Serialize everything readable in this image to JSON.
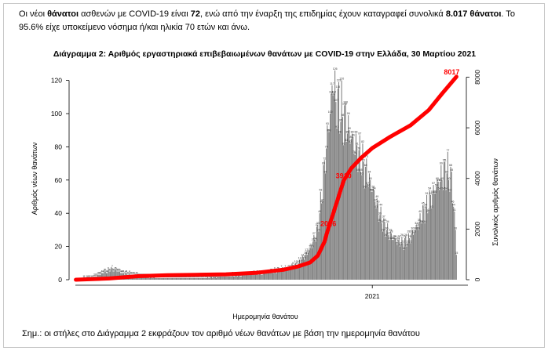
{
  "intro": {
    "s1": "Οι νέοι ",
    "b1": "θάνατοι",
    "s2": " ασθενών με COVID-19 είναι ",
    "b2": "72",
    "s3": ", ενώ από την έναρξη της επιδημίας έχουν καταγραφεί συνολικά ",
    "b3": "8.017 θάνατοι",
    "s4": ".  Το 95.6% είχε υποκείμενο νόσημα ή/και ηλικία 70 ετών και άνω."
  },
  "note": "Σημ.: οι στήλες στο Διάγραμμα 2 εκφράζουν τον αριθμό νέων θανάτων με βάση την ημερομηνία θανάτου",
  "chart_data": {
    "type": "bar",
    "title": "Διάγραμμα 2: Αριθμός εργαστηριακά επιβεβαιωμένων θανάτων με COVID-19 στην Ελλάδα, 30 Μαρτίου 2021",
    "xlabel": "Ημερομηνία θανάτου",
    "ylabel": "Αριθμός νέων θανάτων",
    "y2label": "Συνολικός αριθμός θανάτων",
    "x_tick_label": "2021",
    "ylim": [
      0,
      125
    ],
    "yticks": [
      0,
      20,
      40,
      60,
      80,
      100,
      120
    ],
    "y2lim": [
      0,
      8200
    ],
    "y2ticks": [
      0,
      2000,
      4000,
      6000,
      8000
    ],
    "x_range": [
      "2020-02-26",
      "2021-03-30"
    ],
    "x_tick_date": "2021-01-01",
    "grid": false,
    "bar_color": "#808080",
    "line_color": "#ff0000",
    "bar_series": {
      "name": "Αριθμός νέων θανάτων",
      "start_date": "2020-02-26",
      "keypoints": [
        [
          "2020-02-26",
          0
        ],
        [
          "2020-03-14",
          1
        ],
        [
          "2020-03-25",
          4
        ],
        [
          "2020-04-05",
          6
        ],
        [
          "2020-04-15",
          4
        ],
        [
          "2020-05-05",
          2
        ],
        [
          "2020-06-01",
          1
        ],
        [
          "2020-07-01",
          1
        ],
        [
          "2020-08-01",
          2
        ],
        [
          "2020-08-25",
          3
        ],
        [
          "2020-09-15",
          4
        ],
        [
          "2020-10-01",
          6
        ],
        [
          "2020-10-15",
          9
        ],
        [
          "2020-10-28",
          18
        ],
        [
          "2020-11-05",
          30
        ],
        [
          "2020-11-10",
          55
        ],
        [
          "2020-11-14",
          80
        ],
        [
          "2020-11-18",
          100
        ],
        [
          "2020-11-21",
          120
        ],
        [
          "2020-11-24",
          108
        ],
        [
          "2020-11-28",
          104
        ],
        [
          "2020-12-02",
          98
        ],
        [
          "2020-12-06",
          92
        ],
        [
          "2020-12-10",
          86
        ],
        [
          "2020-12-14",
          80
        ],
        [
          "2020-12-18",
          76
        ],
        [
          "2020-12-22",
          70
        ],
        [
          "2020-12-27",
          62
        ],
        [
          "2021-01-01",
          55
        ],
        [
          "2021-01-06",
          45
        ],
        [
          "2021-01-12",
          34
        ],
        [
          "2021-01-18",
          28
        ],
        [
          "2021-01-25",
          24
        ],
        [
          "2021-02-01",
          22
        ],
        [
          "2021-02-08",
          24
        ],
        [
          "2021-02-15",
          30
        ],
        [
          "2021-02-22",
          38
        ],
        [
          "2021-03-01",
          46
        ],
        [
          "2021-03-08",
          55
        ],
        [
          "2021-03-15",
          62
        ],
        [
          "2021-03-20",
          66
        ],
        [
          "2021-03-25",
          60
        ],
        [
          "2021-03-29",
          30
        ],
        [
          "2021-03-30",
          16
        ]
      ]
    },
    "cumulative_series": {
      "name": "Συνολικός αριθμός θανάτων",
      "points": [
        [
          "2020-02-26",
          0
        ],
        [
          "2020-04-01",
          50
        ],
        [
          "2020-05-01",
          140
        ],
        [
          "2020-06-01",
          180
        ],
        [
          "2020-07-01",
          195
        ],
        [
          "2020-08-01",
          215
        ],
        [
          "2020-09-01",
          270
        ],
        [
          "2020-10-01",
          400
        ],
        [
          "2020-10-15",
          520
        ],
        [
          "2020-10-28",
          680
        ],
        [
          "2020-11-05",
          950
        ],
        [
          "2020-11-12",
          1500
        ],
        [
          "2020-11-16",
          2026
        ],
        [
          "2020-11-21",
          2600
        ],
        [
          "2020-11-26",
          3200
        ],
        [
          "2020-12-02",
          3910
        ],
        [
          "2020-12-10",
          4400
        ],
        [
          "2020-12-20",
          4800
        ],
        [
          "2021-01-01",
          5200
        ],
        [
          "2021-01-20",
          5650
        ],
        [
          "2021-02-10",
          6100
        ],
        [
          "2021-03-01",
          6700
        ],
        [
          "2021-03-15",
          7350
        ],
        [
          "2021-03-30",
          8017
        ]
      ]
    },
    "annotations": [
      {
        "date": "2020-11-16",
        "value": 2026,
        "text": "2026"
      },
      {
        "date": "2020-12-02",
        "value": 3910,
        "text": "3910"
      },
      {
        "date": "2021-03-30",
        "value": 8017,
        "text": "8017"
      }
    ]
  }
}
